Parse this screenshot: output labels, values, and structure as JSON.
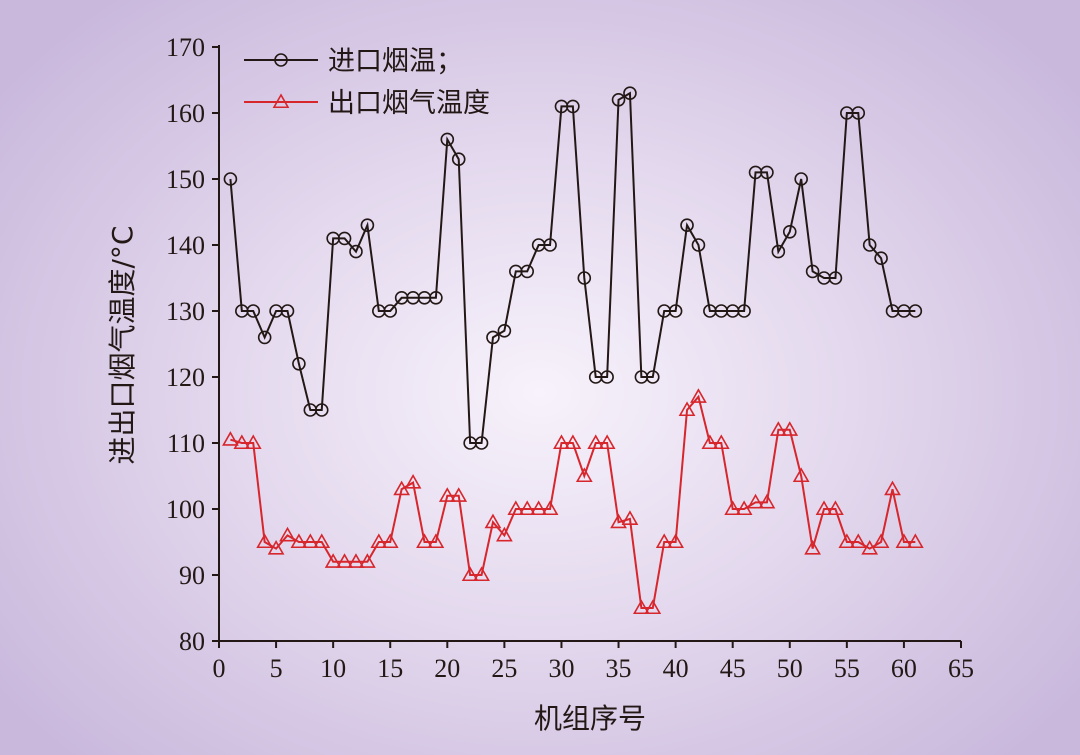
{
  "chart_data": {
    "type": "line",
    "xlabel": "机组序号",
    "ylabel": "进出口烟气温度/°C",
    "xlim": [
      0,
      65
    ],
    "ylim": [
      80,
      170
    ],
    "xticks": [
      0,
      5,
      10,
      15,
      20,
      25,
      30,
      35,
      40,
      45,
      50,
      55,
      60,
      65
    ],
    "yticks": [
      80,
      90,
      100,
      110,
      120,
      130,
      140,
      150,
      160,
      170
    ],
    "grid": false,
    "legend_position": "top-left",
    "x": [
      1,
      2,
      3,
      4,
      5,
      6,
      7,
      8,
      9,
      10,
      11,
      12,
      13,
      14,
      15,
      16,
      17,
      18,
      19,
      20,
      21,
      22,
      23,
      24,
      25,
      26,
      27,
      28,
      29,
      30,
      31,
      32,
      33,
      34,
      35,
      36,
      37,
      38,
      39,
      40,
      41,
      42,
      43,
      44,
      45,
      46,
      47,
      48,
      49,
      50,
      51,
      52,
      53,
      54,
      55,
      56,
      57,
      58,
      59,
      60,
      61
    ],
    "series": [
      {
        "name": "进口烟温；",
        "color": "#231815",
        "marker": "circle",
        "values": [
          150,
          130,
          130,
          126,
          130,
          130,
          122,
          115,
          115,
          141,
          141,
          139,
          143,
          130,
          130,
          132,
          132,
          132,
          132,
          156,
          153,
          110,
          110,
          126,
          127,
          136,
          136,
          140,
          140,
          161,
          161,
          135,
          120,
          120,
          162,
          163,
          120,
          120,
          130,
          130,
          143,
          140,
          130,
          130,
          130,
          130,
          151,
          151,
          139,
          142,
          150,
          136,
          135,
          135,
          160,
          160,
          140,
          138,
          130,
          130,
          130
        ]
      },
      {
        "name": "出口烟气温度",
        "color": "#d7262c",
        "marker": "triangle",
        "values": [
          110.5,
          110,
          110,
          95,
          94,
          96,
          95,
          95,
          95,
          92,
          92,
          92,
          92,
          95,
          95,
          103,
          104,
          95,
          95,
          102,
          102,
          90,
          90,
          98,
          96,
          100,
          100,
          100,
          100,
          110,
          110,
          105,
          110,
          110,
          98,
          98.5,
          85,
          85,
          95,
          95,
          115,
          117,
          110,
          110,
          100,
          100,
          101,
          101,
          112,
          112,
          105,
          94,
          100,
          100,
          95,
          95,
          94,
          95,
          103,
          95,
          95
        ]
      }
    ]
  }
}
